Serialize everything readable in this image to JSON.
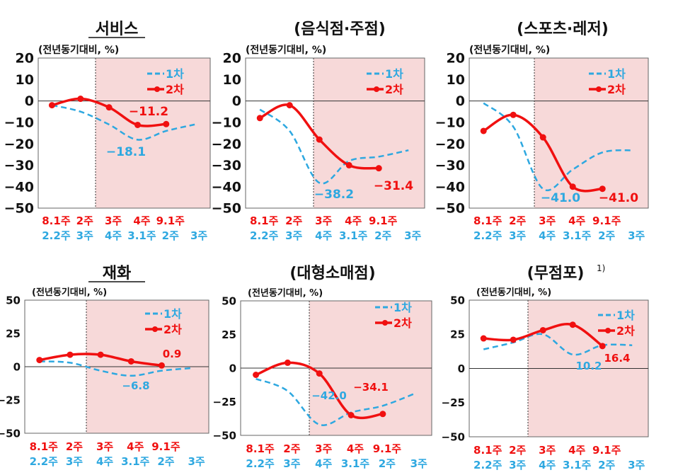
{
  "chart_data": [
    {
      "type": "line",
      "title": "서비스",
      "title_underlined": true,
      "unit_label": "(전년동기대비, %)",
      "ylim": [
        -50,
        20
      ],
      "yticks": [
        20,
        10,
        0,
        -10,
        -20,
        -30,
        -40,
        -50
      ],
      "x_labels_2nd": [
        "8.1주",
        "2주",
        "3주",
        "4주",
        "9.1주"
      ],
      "x_labels_1st": [
        "2.2주",
        "3주",
        "4주",
        "3.1주",
        "2주",
        "3주"
      ],
      "series": [
        {
          "name": "1차",
          "color": "#2EA8E0",
          "style": "dashed",
          "values": [
            -2,
            -5,
            -11,
            -18.1,
            -14,
            -11
          ]
        },
        {
          "name": "2차",
          "color": "#F01010",
          "style": "solid-markers",
          "values": [
            -2,
            1,
            -3,
            -11.2,
            -10.8
          ]
        }
      ],
      "annotations": [
        {
          "text": "-11.2",
          "series": "2차"
        },
        {
          "text": "-18.1",
          "series": "1차"
        }
      ]
    },
    {
      "type": "line",
      "title": "(음식점·주점)",
      "unit_label": "(전년동기대비, %)",
      "ylim": [
        -50,
        20
      ],
      "yticks": [
        20,
        10,
        0,
        -10,
        -20,
        -30,
        -40,
        -50
      ],
      "x_labels_2nd": [
        "8.1주",
        "2주",
        "3주",
        "4주",
        "9.1주"
      ],
      "x_labels_1st": [
        "2.2주",
        "3주",
        "4주",
        "3.1주",
        "2주",
        "3주"
      ],
      "series": [
        {
          "name": "1차",
          "color": "#2EA8E0",
          "style": "dashed",
          "values": [
            -4,
            -14,
            -38.2,
            -28,
            -26,
            -23
          ]
        },
        {
          "name": "2차",
          "color": "#F01010",
          "style": "solid-markers",
          "values": [
            -8,
            -2,
            -18,
            -30,
            -31.4
          ]
        }
      ],
      "annotations": [
        {
          "text": "-38.2",
          "series": "1차"
        },
        {
          "text": "-31.4",
          "series": "2차"
        }
      ]
    },
    {
      "type": "line",
      "title": "(스포츠·레저)",
      "unit_label": "(전년동기대비, %)",
      "ylim": [
        -50,
        20
      ],
      "yticks": [
        20,
        10,
        0,
        -10,
        -20,
        -30,
        -40,
        -50
      ],
      "x_labels_2nd": [
        "8.1주",
        "2주",
        "3주",
        "4주",
        "9.1주"
      ],
      "x_labels_1st": [
        "2.2주",
        "3주",
        "4주",
        "3.1주",
        "2주",
        "3주"
      ],
      "series": [
        {
          "name": "1차",
          "color": "#2EA8E0",
          "style": "dashed",
          "values": [
            -1,
            -12,
            -41.0,
            -32,
            -24,
            -23
          ]
        },
        {
          "name": "2차",
          "color": "#F01010",
          "style": "solid-markers",
          "values": [
            -14,
            -6.5,
            -17,
            -40,
            -41.0
          ]
        }
      ],
      "annotations": [
        {
          "text": "-41.0",
          "series": "1차"
        },
        {
          "text": "-41.0",
          "series": "2차"
        }
      ]
    },
    {
      "type": "line",
      "title": "재화",
      "title_underlined": true,
      "unit_label": "(전년동기대비, %)",
      "ylim": [
        -50,
        50
      ],
      "yticks": [
        50,
        25,
        0,
        -25,
        -50
      ],
      "x_labels_2nd": [
        "8.1주",
        "2주",
        "3주",
        "4주",
        "9.1주"
      ],
      "x_labels_1st": [
        "2.2주",
        "3주",
        "4주",
        "3.1주",
        "2주",
        "3주"
      ],
      "series": [
        {
          "name": "1차",
          "color": "#2EA8E0",
          "style": "dashed",
          "values": [
            4,
            3,
            -3,
            -6.8,
            -3,
            -1
          ]
        },
        {
          "name": "2차",
          "color": "#F01010",
          "style": "solid-markers",
          "values": [
            5,
            9,
            9,
            4,
            0.9
          ]
        }
      ],
      "annotations": [
        {
          "text": "0.9",
          "series": "2차"
        },
        {
          "text": "-6.8",
          "series": "1차"
        }
      ]
    },
    {
      "type": "line",
      "title": "(대형소매점)",
      "unit_label": "(전년동기대비, %)",
      "ylim": [
        -50,
        50
      ],
      "yticks": [
        50,
        25,
        0,
        -25,
        -50
      ],
      "x_labels_2nd": [
        "8.1주",
        "2주",
        "3주",
        "4주",
        "9.1주"
      ],
      "x_labels_1st": [
        "2.2주",
        "3주",
        "4주",
        "3.1주",
        "2주",
        "3주"
      ],
      "series": [
        {
          "name": "1차",
          "color": "#2EA8E0",
          "style": "dashed",
          "values": [
            -8,
            -17,
            -42.0,
            -33,
            -28,
            -19
          ]
        },
        {
          "name": "2차",
          "color": "#F01010",
          "style": "solid-markers",
          "values": [
            -5,
            4,
            -4,
            -35,
            -34.1
          ]
        }
      ],
      "annotations": [
        {
          "text": "-42.0",
          "series": "1차"
        },
        {
          "text": "-34.1",
          "series": "2차"
        }
      ]
    },
    {
      "type": "line",
      "title": "(무점포)",
      "title_superscript": "1)",
      "unit_label": "(전년동기대비, %)",
      "ylim": [
        -50,
        50
      ],
      "yticks": [
        50,
        25,
        0,
        -25,
        -50
      ],
      "x_labels_2nd": [
        "8.1주",
        "2주",
        "3주",
        "4주",
        "9.1주"
      ],
      "x_labels_1st": [
        "2.2주",
        "3주",
        "4주",
        "3.1주",
        "2주",
        "3주"
      ],
      "series": [
        {
          "name": "1차",
          "color": "#2EA8E0",
          "style": "dashed",
          "values": [
            14,
            19,
            25,
            10.2,
            17,
            17
          ]
        },
        {
          "name": "2차",
          "color": "#F01010",
          "style": "solid-markers",
          "values": [
            22,
            21,
            28,
            32,
            16.4
          ]
        }
      ],
      "annotations": [
        {
          "text": "10.2",
          "series": "1차"
        },
        {
          "text": "16.4",
          "series": "2차"
        }
      ]
    }
  ],
  "shaded_region_color": "#F7D9D9"
}
